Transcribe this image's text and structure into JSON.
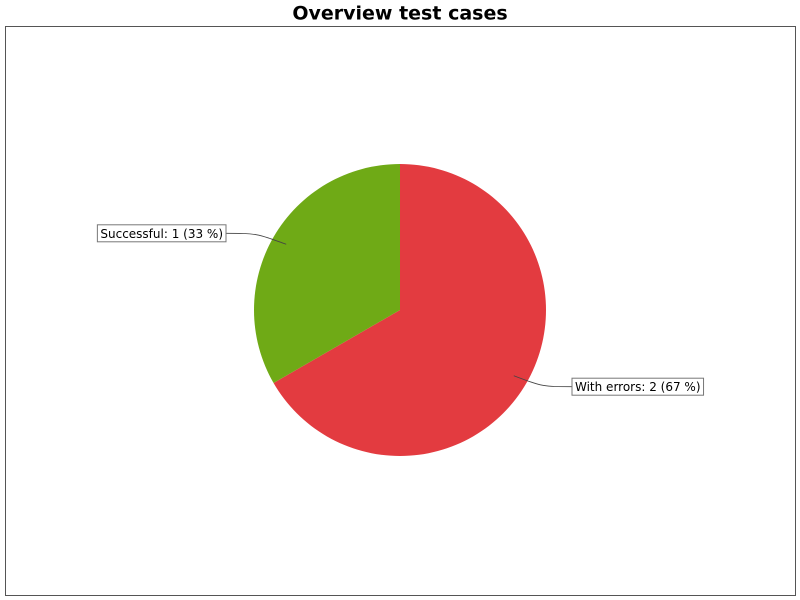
{
  "chart_data": {
    "type": "pie",
    "title": "Overview test cases",
    "values": [
      2,
      1
    ],
    "value_labels": [
      "With errors: 2 (67 %)",
      "Successful: 1 (33 %)"
    ],
    "colors": [
      "#e33b40",
      "#6faa16"
    ]
  }
}
